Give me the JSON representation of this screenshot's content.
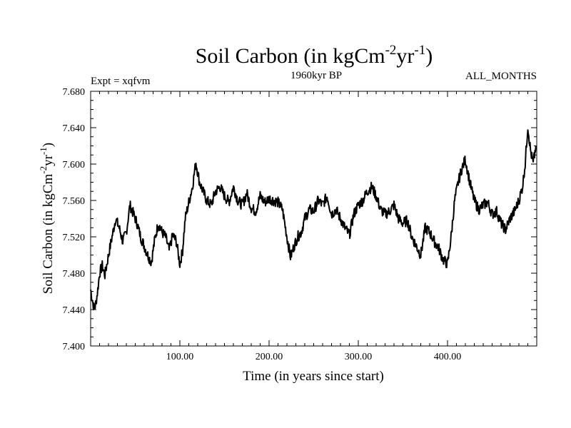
{
  "chart_data": {
    "type": "line",
    "title": {
      "base": "Soil Carbon (in kgCm",
      "sup1": "-2",
      "mid": "yr",
      "sup2": "-1",
      "end": ")"
    },
    "subtitle": "1960kyr BP",
    "left_label": "Expt = xqfvm",
    "right_label": "ALL_MONTHS",
    "xlabel": "Time (in years since start)",
    "ylabel": {
      "base": "Soil Carbon (in kgCm",
      "sup1": "-2",
      "mid": "yr",
      "sup2": "-1",
      "end": ")"
    },
    "xlim": [
      0,
      500
    ],
    "ylim": [
      7.4,
      7.68
    ],
    "x_ticks": [
      100,
      200,
      300,
      400
    ],
    "x_tick_labels": [
      "100.00",
      "200.00",
      "300.00",
      "400.00"
    ],
    "y_ticks": [
      7.4,
      7.44,
      7.48,
      7.52,
      7.56,
      7.6,
      7.64,
      7.68
    ],
    "y_tick_labels": [
      "7.400",
      "7.440",
      "7.480",
      "7.520",
      "7.560",
      "7.600",
      "7.640",
      "7.680"
    ],
    "series": [
      {
        "name": "Soil Carbon",
        "color": "#000000",
        "x": [
          0,
          2,
          4,
          6,
          8,
          10,
          13,
          16,
          20,
          24,
          28,
          32,
          36,
          40,
          44,
          48,
          52,
          56,
          60,
          64,
          68,
          72,
          76,
          80,
          84,
          88,
          92,
          96,
          100,
          103,
          106,
          110,
          114,
          118,
          122,
          126,
          130,
          135,
          140,
          145,
          150,
          155,
          160,
          165,
          170,
          175,
          180,
          185,
          190,
          195,
          200,
          205,
          210,
          215,
          220,
          224,
          228,
          232,
          236,
          240,
          245,
          250,
          255,
          260,
          265,
          270,
          275,
          280,
          285,
          290,
          295,
          300,
          305,
          310,
          315,
          320,
          325,
          330,
          335,
          340,
          345,
          350,
          355,
          360,
          365,
          370,
          375,
          380,
          385,
          390,
          395,
          400,
          404,
          408,
          412,
          416,
          420,
          425,
          430,
          435,
          440,
          445,
          450,
          455,
          460,
          465,
          470,
          475,
          480,
          484,
          487,
          490,
          493,
          496,
          499
        ],
        "y": [
          7.462,
          7.45,
          7.44,
          7.448,
          7.462,
          7.48,
          7.488,
          7.478,
          7.5,
          7.52,
          7.54,
          7.53,
          7.515,
          7.525,
          7.555,
          7.545,
          7.535,
          7.52,
          7.51,
          7.5,
          7.492,
          7.518,
          7.535,
          7.525,
          7.52,
          7.505,
          7.522,
          7.515,
          7.49,
          7.505,
          7.54,
          7.558,
          7.575,
          7.602,
          7.58,
          7.57,
          7.56,
          7.555,
          7.57,
          7.575,
          7.565,
          7.558,
          7.575,
          7.56,
          7.555,
          7.568,
          7.552,
          7.548,
          7.565,
          7.558,
          7.562,
          7.56,
          7.558,
          7.55,
          7.52,
          7.498,
          7.51,
          7.52,
          7.525,
          7.54,
          7.55,
          7.548,
          7.56,
          7.555,
          7.565,
          7.545,
          7.55,
          7.54,
          7.53,
          7.522,
          7.545,
          7.555,
          7.56,
          7.57,
          7.575,
          7.565,
          7.55,
          7.545,
          7.548,
          7.555,
          7.54,
          7.535,
          7.538,
          7.52,
          7.51,
          7.5,
          7.53,
          7.525,
          7.515,
          7.508,
          7.495,
          7.49,
          7.52,
          7.56,
          7.58,
          7.595,
          7.605,
          7.58,
          7.56,
          7.55,
          7.555,
          7.558,
          7.545,
          7.548,
          7.535,
          7.528,
          7.54,
          7.548,
          7.56,
          7.575,
          7.6,
          7.642,
          7.615,
          7.6,
          7.62
        ]
      }
    ]
  }
}
